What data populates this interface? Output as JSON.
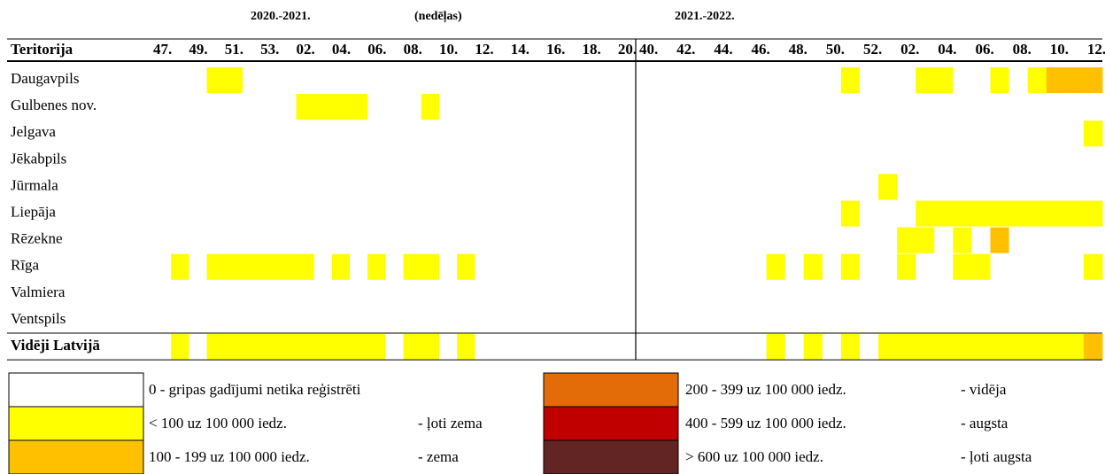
{
  "chart_data": {
    "type": "heatmap",
    "row_header": "Teritorija",
    "unit_label": "(nedēļas)",
    "seasons": [
      {
        "title": "2020.-2021.",
        "column_labels": [
          "47.",
          "49.",
          "51.",
          "53.",
          "02.",
          "04.",
          "06.",
          "08.",
          "10.",
          "12.",
          "14.",
          "16.",
          "18.",
          "20."
        ],
        "values": [
          [
            0,
            0,
            0,
            1,
            1,
            0,
            0,
            0,
            0,
            0,
            0,
            0,
            0,
            0,
            0,
            0,
            0,
            0,
            0,
            0,
            0,
            0,
            0,
            0,
            0,
            0,
            0
          ],
          [
            0,
            0,
            0,
            0,
            0,
            0,
            0,
            0,
            1,
            1,
            1,
            1,
            0,
            0,
            0,
            1,
            0,
            0,
            0,
            0,
            0,
            0,
            0,
            0,
            0,
            0,
            0
          ],
          [
            0,
            0,
            0,
            0,
            0,
            0,
            0,
            0,
            0,
            0,
            0,
            0,
            0,
            0,
            0,
            0,
            0,
            0,
            0,
            0,
            0,
            0,
            0,
            0,
            0,
            0,
            0
          ],
          [
            0,
            0,
            0,
            0,
            0,
            0,
            0,
            0,
            0,
            0,
            0,
            0,
            0,
            0,
            0,
            0,
            0,
            0,
            0,
            0,
            0,
            0,
            0,
            0,
            0,
            0,
            0
          ],
          [
            0,
            0,
            0,
            0,
            0,
            0,
            0,
            0,
            0,
            0,
            0,
            0,
            0,
            0,
            0,
            0,
            0,
            0,
            0,
            0,
            0,
            0,
            0,
            0,
            0,
            0,
            0
          ],
          [
            0,
            0,
            0,
            0,
            0,
            0,
            0,
            0,
            0,
            0,
            0,
            0,
            0,
            0,
            0,
            0,
            0,
            0,
            0,
            0,
            0,
            0,
            0,
            0,
            0,
            0,
            0
          ],
          [
            0,
            0,
            0,
            0,
            0,
            0,
            0,
            0,
            0,
            0,
            0,
            0,
            0,
            0,
            0,
            0,
            0,
            0,
            0,
            0,
            0,
            0,
            0,
            0,
            0,
            0,
            0
          ],
          [
            0,
            1,
            0,
            1,
            1,
            1,
            1,
            1,
            1,
            0,
            1,
            0,
            1,
            0,
            1,
            1,
            0,
            1,
            0,
            0,
            0,
            0,
            0,
            0,
            0,
            0,
            0
          ],
          [
            0,
            0,
            0,
            0,
            0,
            0,
            0,
            0,
            0,
            0,
            0,
            0,
            0,
            0,
            0,
            0,
            0,
            0,
            0,
            0,
            0,
            0,
            0,
            0,
            0,
            0,
            0
          ],
          [
            0,
            0,
            0,
            0,
            0,
            0,
            0,
            0,
            0,
            0,
            0,
            0,
            0,
            0,
            0,
            0,
            0,
            0,
            0,
            0,
            0,
            0,
            0,
            0,
            0,
            0,
            0
          ],
          [
            0,
            1,
            0,
            1,
            1,
            1,
            1,
            1,
            1,
            1,
            1,
            1,
            1,
            0,
            1,
            1,
            0,
            1,
            0,
            0,
            0,
            0,
            0,
            0,
            0,
            0,
            0
          ]
        ]
      },
      {
        "title": "2021.-2022.",
        "column_labels": [
          "40.",
          "42.",
          "44.",
          "46.",
          "48.",
          "50.",
          "52.",
          "02.",
          "04.",
          "06.",
          "08.",
          "10.",
          "12."
        ],
        "values": [
          [
            0,
            0,
            0,
            0,
            0,
            0,
            0,
            0,
            0,
            0,
            0,
            1,
            0,
            0,
            0,
            1,
            1,
            0,
            0,
            1,
            0,
            1,
            2,
            2,
            2
          ],
          [
            0,
            0,
            0,
            0,
            0,
            0,
            0,
            0,
            0,
            0,
            0,
            0,
            0,
            0,
            0,
            0,
            0,
            0,
            0,
            0,
            0,
            0,
            0,
            0,
            0
          ],
          [
            0,
            0,
            0,
            0,
            0,
            0,
            0,
            0,
            0,
            0,
            0,
            0,
            0,
            0,
            0,
            0,
            0,
            0,
            0,
            0,
            0,
            0,
            0,
            0,
            1
          ],
          [
            0,
            0,
            0,
            0,
            0,
            0,
            0,
            0,
            0,
            0,
            0,
            0,
            0,
            0,
            0,
            0,
            0,
            0,
            0,
            0,
            0,
            0,
            0,
            0,
            0
          ],
          [
            0,
            0,
            0,
            0,
            0,
            0,
            0,
            0,
            0,
            0,
            0,
            0,
            0,
            1,
            0,
            0,
            0,
            0,
            0,
            0,
            0,
            0,
            0,
            0,
            0
          ],
          [
            0,
            0,
            0,
            0,
            0,
            0,
            0,
            0,
            0,
            0,
            0,
            1,
            0,
            0,
            0,
            1,
            1,
            1,
            1,
            1,
            1,
            1,
            1,
            1,
            1
          ],
          [
            0,
            0,
            0,
            0,
            0,
            0,
            0,
            0,
            0,
            0,
            0,
            0,
            0,
            0,
            1,
            1,
            0,
            1,
            0,
            2,
            0,
            0,
            0,
            0,
            0
          ],
          [
            0,
            0,
            0,
            0,
            0,
            0,
            0,
            1,
            0,
            1,
            0,
            1,
            0,
            0,
            1,
            0,
            0,
            1,
            1,
            0,
            0,
            0,
            0,
            0,
            1
          ],
          [
            0,
            0,
            0,
            0,
            0,
            0,
            0,
            0,
            0,
            0,
            0,
            0,
            0,
            0,
            0,
            0,
            0,
            0,
            0,
            0,
            0,
            0,
            0,
            0,
            0
          ],
          [
            0,
            0,
            0,
            0,
            0,
            0,
            0,
            0,
            0,
            0,
            0,
            0,
            0,
            0,
            0,
            0,
            0,
            0,
            0,
            0,
            0,
            0,
            0,
            0,
            0
          ],
          [
            0,
            0,
            0,
            0,
            0,
            0,
            0,
            1,
            0,
            1,
            0,
            1,
            0,
            1,
            1,
            1,
            1,
            1,
            1,
            1,
            1,
            1,
            1,
            1,
            2
          ]
        ]
      }
    ],
    "rows": [
      "Daugavpils",
      "Gulbenes nov.",
      "Jelgava",
      "Jēkabpils",
      "Jūrmala",
      "Liepāja",
      "Rēzekne",
      "Rīga",
      "Valmiera",
      "Ventspils",
      "Vidēji Latvijā"
    ],
    "legend": [
      {
        "color": "#ffffff",
        "range": "0 - gripas gadījumi netika reģistrēti"
      },
      {
        "color": "#ffff00",
        "range": "< 100 uz 100 000 iedz.",
        "level": "- ļoti zema"
      },
      {
        "color": "#ffc000",
        "range": "100 - 199 uz 100 000 iedz.",
        "level": "- zema"
      },
      {
        "color": "#e36c09",
        "range": "200 - 399 uz 100 000 iedz.",
        "level": "- vidēja"
      },
      {
        "color": "#c00000",
        "range": "400 - 599 uz 100 000 iedz.",
        "level": "- augsta"
      },
      {
        "color": "#632523",
        "range": "> 600 uz 100 000 iedz.",
        "level": "- ļoti augsta"
      }
    ]
  }
}
